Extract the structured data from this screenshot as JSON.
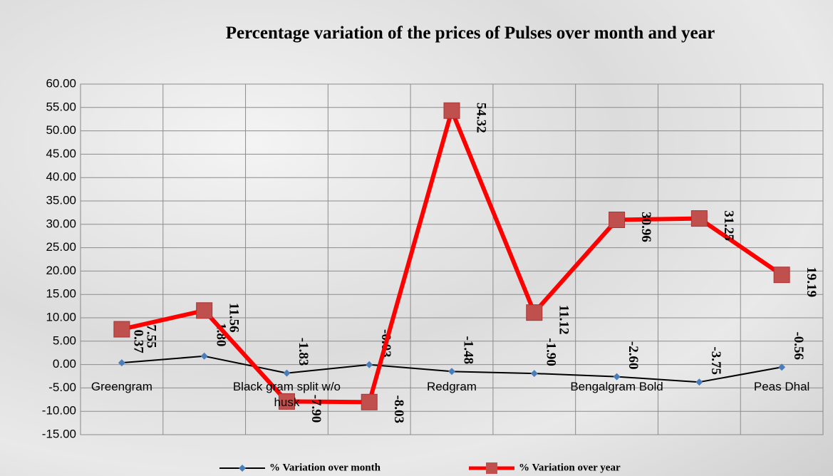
{
  "chart_data": {
    "type": "line",
    "title": "Percentage variation of the prices of Pulses over month and year",
    "categories": [
      "Greengram",
      null,
      "Black gram split w/o husk",
      null,
      "Redgram",
      null,
      "Bengalgram Bold",
      null,
      "Peas Dhal"
    ],
    "series": [
      {
        "name": "% Variation over month",
        "color": "#4a7ebb",
        "line_color": "#000000",
        "values": [
          0.37,
          1.8,
          -1.83,
          -0.03,
          -1.48,
          -1.9,
          -2.6,
          -3.75,
          -0.56
        ],
        "value_labels": [
          "0.37",
          "1.80",
          "-1.83",
          "-0.03",
          "-1.48",
          "-1.90",
          "-2.60",
          "-3.75",
          "-0.56"
        ]
      },
      {
        "name": "% Variation over year",
        "color": "#c0504d",
        "line_color": "#ff0000",
        "values": [
          7.55,
          11.56,
          -7.9,
          -8.03,
          54.32,
          11.12,
          30.96,
          31.25,
          19.19
        ],
        "value_labels": [
          "7.55",
          "11.56",
          "-7.90",
          "-8.03",
          "54.32",
          "11.12",
          "30.96",
          "31.25",
          "19.19"
        ]
      }
    ],
    "ylim": [
      -15,
      60
    ],
    "yticks": [
      {
        "value": -15,
        "label": "-15.00"
      },
      {
        "value": -10,
        "label": "-10.00"
      },
      {
        "value": -5,
        "label": "-5.00"
      },
      {
        "value": 0,
        "label": "0.00"
      },
      {
        "value": 5,
        "label": "5.00"
      },
      {
        "value": 10,
        "label": "10.00"
      },
      {
        "value": 15,
        "label": "15.00"
      },
      {
        "value": 20,
        "label": "20.00"
      },
      {
        "value": 25,
        "label": "25.00"
      },
      {
        "value": 30,
        "label": "30.00"
      },
      {
        "value": 35,
        "label": "35.00"
      },
      {
        "value": 40,
        "label": "40.00"
      },
      {
        "value": 45,
        "label": "45.00"
      },
      {
        "value": 50,
        "label": "50.00"
      },
      {
        "value": 55,
        "label": "55.00"
      },
      {
        "value": 60,
        "label": "60.00"
      }
    ],
    "grid": true,
    "legend": "bottom"
  }
}
